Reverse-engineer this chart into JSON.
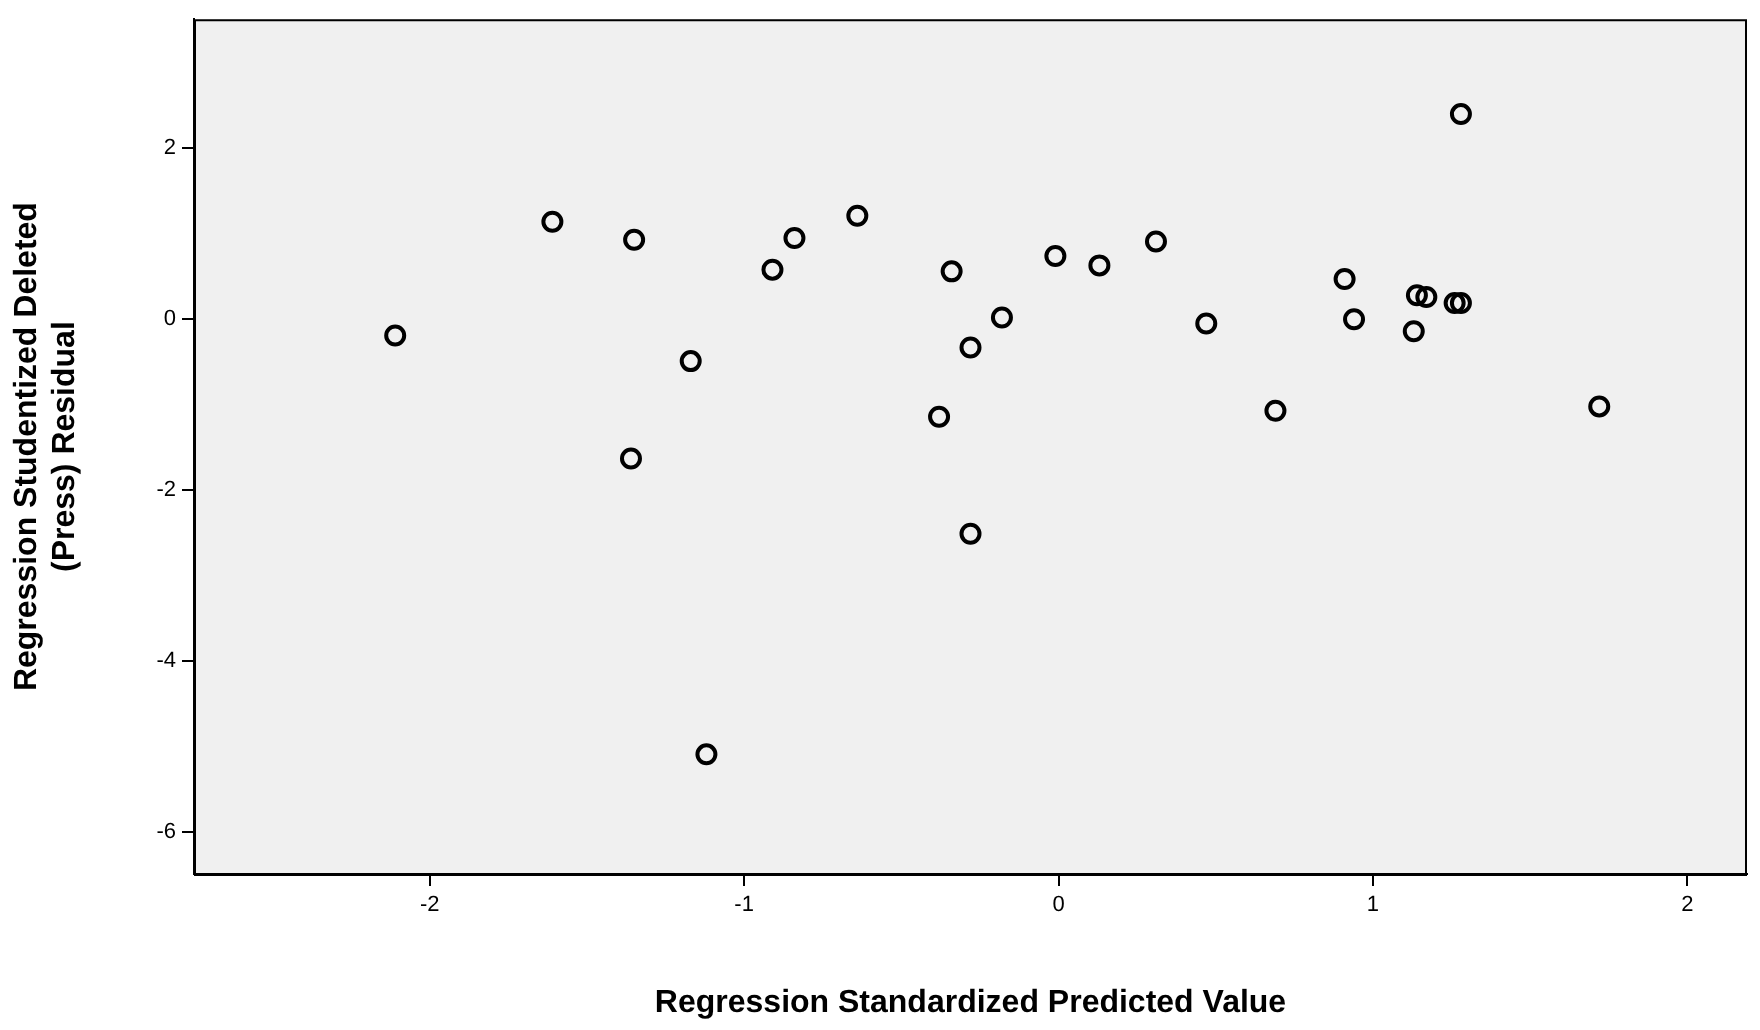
{
  "chart_data": {
    "type": "scatter",
    "xlabel": "Regression Standardized Predicted Value",
    "ylabel": "Regression Studentized Deleted (Press) Residual",
    "xlim": [
      -2.75,
      2.19
    ],
    "ylim": [
      -6.49,
      3.51
    ],
    "xticks": [
      -2,
      -1,
      0,
      1,
      2
    ],
    "yticks": [
      -6,
      -4,
      -2,
      0,
      2
    ],
    "grid": false,
    "legend": false,
    "marker": "circle",
    "series": [
      {
        "color": "#000000",
        "x": [
          -2.11,
          -1.61,
          -1.35,
          -1.36,
          -1.17,
          -1.12,
          -0.91,
          -0.84,
          -0.64,
          -0.38,
          -0.34,
          -0.28,
          -0.28,
          -0.18,
          -0.01,
          0.13,
          0.31,
          0.47,
          0.69,
          0.91,
          0.94,
          1.13,
          1.14,
          1.17,
          1.26,
          1.28,
          1.28,
          1.72
        ],
        "values": [
          -0.19,
          1.14,
          0.93,
          -1.63,
          -0.49,
          -5.09,
          0.58,
          0.95,
          1.21,
          -1.14,
          0.56,
          -0.33,
          -2.51,
          0.02,
          0.74,
          0.63,
          0.91,
          -0.05,
          -1.07,
          0.47,
          0.0,
          -0.14,
          0.28,
          0.26,
          0.19,
          0.19,
          2.4,
          -1.02
        ]
      }
    ]
  }
}
